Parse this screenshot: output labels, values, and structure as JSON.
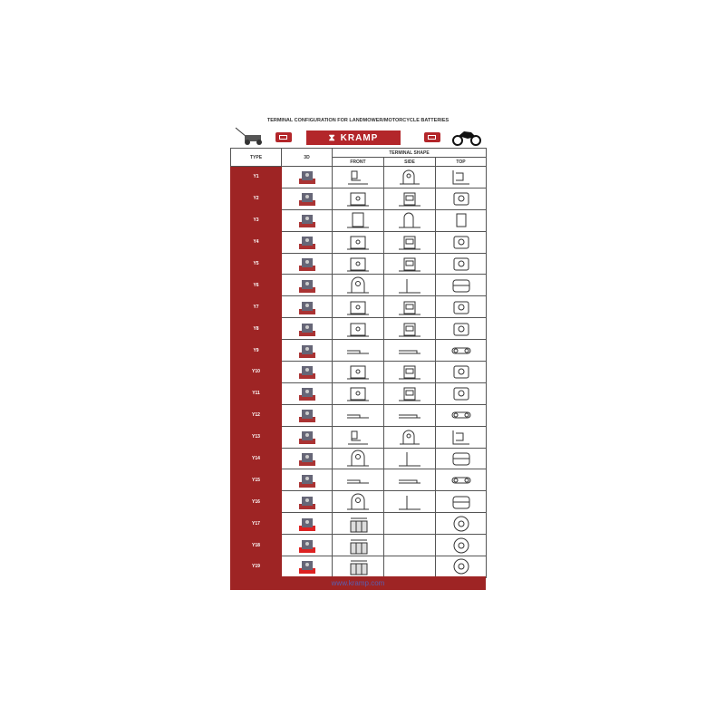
{
  "title": "TERMINAL CONFIGURATION FOR LANDMOWER/MOTORCYCLE BATTERIES",
  "brand": "KRAMP",
  "colors": {
    "brand": "#b3262a",
    "type_cell": "#9e2424",
    "link": "#5a5fb0"
  },
  "icons": [
    "lawnmower-icon",
    "battery-icon",
    "motorcycle-icon"
  ],
  "table": {
    "headers": {
      "type": "TYPE",
      "3d": "3D",
      "terminal_shape": "TERMINAL SHAPE",
      "front": "FRONT",
      "side": "SIDE",
      "top": "TOP"
    },
    "rows": [
      {
        "type": "Y1",
        "shape": "L-tab"
      },
      {
        "type": "Y2",
        "shape": "box"
      },
      {
        "type": "Y3",
        "shape": "tall-tab"
      },
      {
        "type": "Y4",
        "shape": "box"
      },
      {
        "type": "Y5",
        "shape": "box"
      },
      {
        "type": "Y6",
        "shape": "round-tab"
      },
      {
        "type": "Y7",
        "shape": "box"
      },
      {
        "type": "Y8",
        "shape": "box"
      },
      {
        "type": "Y9",
        "shape": "flat-strip"
      },
      {
        "type": "Y10",
        "shape": "box"
      },
      {
        "type": "Y11",
        "shape": "box"
      },
      {
        "type": "Y12",
        "shape": "flat-strip"
      },
      {
        "type": "Y13",
        "shape": "L-tab"
      },
      {
        "type": "Y14",
        "shape": "round-tab"
      },
      {
        "type": "Y15",
        "shape": "flat-strip"
      },
      {
        "type": "Y16",
        "shape": "round-tab"
      },
      {
        "type": "Y17",
        "shape": "stud"
      },
      {
        "type": "Y18",
        "shape": "stud"
      },
      {
        "type": "Y19",
        "shape": "stud"
      }
    ]
  },
  "footer": "www.kramp.com"
}
